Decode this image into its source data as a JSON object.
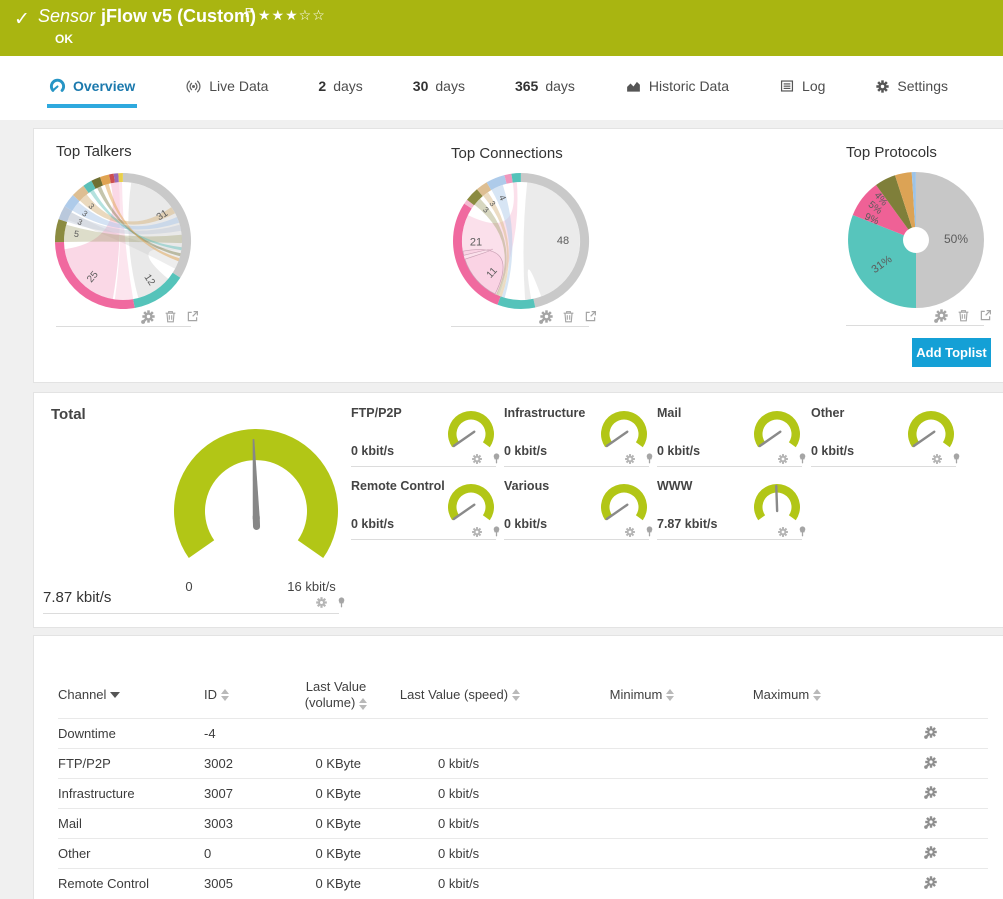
{
  "header": {
    "status_glyph": "✓",
    "kind": "Sensor",
    "title": "jFlow v5 (Custom)",
    "status": "OK",
    "stars_filled": 3,
    "stars_total": 5
  },
  "tabs": [
    {
      "label": "Overview",
      "icon": "gauge-icon",
      "active": true
    },
    {
      "label": "Live Data",
      "icon": "broadcast-icon"
    },
    {
      "num": "2",
      "label": "days"
    },
    {
      "num": "30",
      "label": "days"
    },
    {
      "num": "365",
      "label": "days"
    },
    {
      "label": "Historic Data",
      "icon": "historic-icon"
    },
    {
      "label": "Log",
      "icon": "log-icon"
    },
    {
      "label": "Settings",
      "icon": "gear-icon"
    }
  ],
  "toplists": {
    "talkers_title": "Top Talkers",
    "connections_title": "Top Connections",
    "protocols_title": "Top Protocols",
    "add_button": "Add Toplist",
    "tool_icons": [
      "options-icon",
      "delete-icon",
      "open-icon"
    ]
  },
  "gauges": {
    "unit_max": 16,
    "total": {
      "label": "Total",
      "value": 7.87,
      "value_label": "7.87 kbit/s",
      "min_label": "0",
      "max_label": "16 kbit/s"
    },
    "channels": [
      {
        "label": "FTP/P2P",
        "value": 0,
        "value_label": "0 kbit/s"
      },
      {
        "label": "Infrastructure",
        "value": 0,
        "value_label": "0 kbit/s"
      },
      {
        "label": "Mail",
        "value": 0,
        "value_label": "0 kbit/s"
      },
      {
        "label": "Other",
        "value": 0,
        "value_label": "0 kbit/s"
      },
      {
        "label": "Remote Control",
        "value": 0,
        "value_label": "0 kbit/s"
      },
      {
        "label": "Various",
        "value": 0,
        "value_label": "0 kbit/s"
      },
      {
        "label": "WWW",
        "value": 7.87,
        "value_label": "7.87 kbit/s"
      }
    ]
  },
  "table": {
    "columns": [
      {
        "label": "Channel",
        "sort": "desc"
      },
      {
        "label": "ID",
        "sort": "both"
      },
      {
        "label": "Last Value (volume)",
        "sort": "both"
      },
      {
        "label": "Last Value (speed)",
        "sort": "both"
      },
      {
        "label": "Minimum",
        "sort": "both"
      },
      {
        "label": "Maximum",
        "sort": "both"
      }
    ],
    "rows": [
      {
        "channel": "Downtime",
        "id": "-4",
        "volume": "",
        "speed": "",
        "min": "",
        "max": ""
      },
      {
        "channel": "FTP/P2P",
        "id": "3002",
        "volume": "0 KByte",
        "speed": "0 kbit/s",
        "min": "",
        "max": ""
      },
      {
        "channel": "Infrastructure",
        "id": "3007",
        "volume": "0 KByte",
        "speed": "0 kbit/s",
        "min": "",
        "max": ""
      },
      {
        "channel": "Mail",
        "id": "3003",
        "volume": "0 KByte",
        "speed": "0 kbit/s",
        "min": "",
        "max": ""
      },
      {
        "channel": "Other",
        "id": "0",
        "volume": "0 KByte",
        "speed": "0 kbit/s",
        "min": "",
        "max": ""
      },
      {
        "channel": "Remote Control",
        "id": "3005",
        "volume": "0 KByte",
        "speed": "0 kbit/s",
        "min": "",
        "max": ""
      }
    ]
  },
  "colors": {
    "header_green": "#a9b511",
    "gauge_green": "#b2c616",
    "button_blue": "#14a0d6",
    "tab_blue": "#1b79ad",
    "needle_gray": "#878787"
  },
  "chart_data": [
    {
      "id": "top-talkers",
      "type": "chord",
      "title": "Top Talkers",
      "segments": [
        {
          "value": 31,
          "color": "#c9c9c9"
        },
        {
          "value": 12,
          "color": "#55c3ba"
        },
        {
          "value": 25,
          "color": "#f0699f"
        },
        {
          "value": 5,
          "color": "#8b8b40"
        },
        {
          "value": 3,
          "color": "#b9c8dc"
        },
        {
          "value": 3,
          "color": "#aecbea"
        },
        {
          "value": 3,
          "color": "#ddbe92"
        },
        {
          "value": 2,
          "color": "#5bbfb7"
        },
        {
          "value": 2,
          "color": "#6f6f31"
        },
        {
          "value": 2,
          "color": "#e0a351"
        },
        {
          "value": 1,
          "color": "#cc4f4f"
        },
        {
          "value": 1,
          "color": "#9b6bb5"
        },
        {
          "value": 1,
          "color": "#e8cf4a"
        }
      ],
      "ribbons": [
        {
          "s": [
            8,
            100
          ],
          "t": [
            130,
            165
          ],
          "c": "rgba(200,200,200,0.40)"
        },
        {
          "s": [
            100,
            118
          ],
          "t": [
            291,
            299
          ],
          "c": "rgba(200,200,200,0.32)"
        },
        {
          "s": [
            190,
            262
          ],
          "t": [
            348,
            356
          ],
          "c": "rgba(244,168,200,0.45)"
        },
        {
          "s": [
            170,
            188
          ],
          "t": [
            356,
            359
          ],
          "c": "rgba(244,168,200,0.30)"
        },
        {
          "s": [
            313,
            322
          ],
          "t": [
            55,
            62
          ],
          "c": "rgba(217,185,136,0.55)"
        },
        {
          "s": [
            301,
            311
          ],
          "t": [
            66,
            72
          ],
          "c": "rgba(176,203,233,0.55)"
        },
        {
          "s": [
            289,
            299
          ],
          "t": [
            74,
            80
          ],
          "c": "rgba(190,200,215,0.45)"
        },
        {
          "s": [
            269,
            286
          ],
          "t": [
            84,
            92
          ],
          "c": "rgba(150,150,90,0.32)"
        },
        {
          "s": [
            326,
            330
          ],
          "t": [
            96,
            99
          ],
          "c": "rgba(91,191,183,0.45)"
        },
        {
          "s": [
            334,
            338
          ],
          "t": [
            102,
            105
          ],
          "c": "rgba(111,111,49,0.40)"
        },
        {
          "s": [
            342,
            346
          ],
          "t": [
            107,
            110
          ],
          "c": "rgba(224,163,81,0.50)"
        }
      ],
      "labels": [
        {
          "text": "31",
          "a": 57,
          "r": 47,
          "rot": -33,
          "fs": 10
        },
        {
          "text": "12",
          "a": 146,
          "r": 47,
          "rot": 56,
          "fs": 10
        },
        {
          "text": "25",
          "a": 220,
          "r": 47,
          "rot": -50,
          "fs": 10
        },
        {
          "text": "5",
          "a": 278,
          "r": 47,
          "rot": 8,
          "fs": 9
        },
        {
          "text": "3",
          "a": 293,
          "r": 47,
          "rot": 23,
          "fs": 8
        },
        {
          "text": "3",
          "a": 305,
          "r": 47,
          "rot": 35,
          "fs": 8
        },
        {
          "text": "3",
          "a": 317,
          "r": 47,
          "rot": 47,
          "fs": 8
        }
      ]
    },
    {
      "id": "top-connections",
      "type": "chord",
      "title": "Top Connections",
      "segments": [
        {
          "value": 166,
          "color": "#c9c9c9"
        },
        {
          "value": 32,
          "color": "#55c3ba"
        },
        {
          "value": 102,
          "color": "#f0699f"
        },
        {
          "value": 4,
          "color": "#f4b8d0"
        },
        {
          "value": 12,
          "color": "#8b8b40"
        },
        {
          "value": 10,
          "color": "#ddbe92"
        },
        {
          "value": 16,
          "color": "#aecbea"
        },
        {
          "value": 6,
          "color": "#f097bd"
        },
        {
          "value": 8,
          "color": "#55c3ba"
        }
      ],
      "ribbons": [
        {
          "s": [
            6,
            160
          ],
          "t": [
            170,
            176
          ],
          "c": "rgba(205,205,205,0.40)"
        },
        {
          "s": [
            204,
            296
          ],
          "t": [
            352,
            356
          ],
          "c": "rgba(246,180,208,0.42)"
        },
        {
          "s": [
            206,
            252
          ],
          "t": [
            256,
            260
          ],
          "c": "rgba(249,205,224,0.65)",
          "stroke": "#c9a0b4"
        },
        {
          "s": [
            308,
            316
          ],
          "t": [
            202,
            205
          ],
          "c": "rgba(150,150,90,0.38)"
        },
        {
          "s": [
            320,
            326
          ],
          "t": [
            199,
            202
          ],
          "c": "rgba(217,185,136,0.50)"
        },
        {
          "s": [
            330,
            342
          ],
          "t": [
            196,
            199
          ],
          "c": "rgba(176,203,233,0.50)"
        }
      ],
      "labels": [
        {
          "text": "48",
          "a": 90,
          "r": 42,
          "rot": 0,
          "fs": 11
        },
        {
          "text": "21",
          "a": 268,
          "r": 45,
          "rot": 0,
          "fs": 11
        },
        {
          "text": "11",
          "a": 222,
          "r": 43,
          "rot": -48,
          "fs": 10
        },
        {
          "text": "3",
          "a": 311,
          "r": 47,
          "rot": 41,
          "fs": 8
        },
        {
          "text": "3",
          "a": 322,
          "r": 47,
          "rot": 52,
          "fs": 8
        },
        {
          "text": "4",
          "a": 336,
          "r": 47,
          "rot": 66,
          "fs": 9
        }
      ]
    },
    {
      "id": "top-protocols",
      "type": "donut",
      "title": "Top Protocols",
      "values": [
        50,
        31,
        9,
        5,
        4,
        1
      ],
      "slice_labels": [
        "50%",
        "31%",
        "9%",
        "5%",
        "4%",
        ""
      ],
      "colors": [
        "#c7c7c7",
        "#57c5bc",
        "#ef6196",
        "#7f7f3a",
        "#dca355",
        "#9dc3e6"
      ],
      "label_pos": [
        {
          "a": 90,
          "r": 40,
          "rot": 0,
          "fs": 12
        },
        {
          "a": 234,
          "r": 42,
          "rot": -36,
          "fs": 11
        },
        {
          "a": 295,
          "r": 49,
          "rot": 25,
          "fs": 10
        },
        {
          "a": 308,
          "r": 52,
          "rot": 38,
          "fs": 10
        },
        {
          "a": 319,
          "r": 54,
          "rot": 49,
          "fs": 10
        }
      ]
    }
  ]
}
